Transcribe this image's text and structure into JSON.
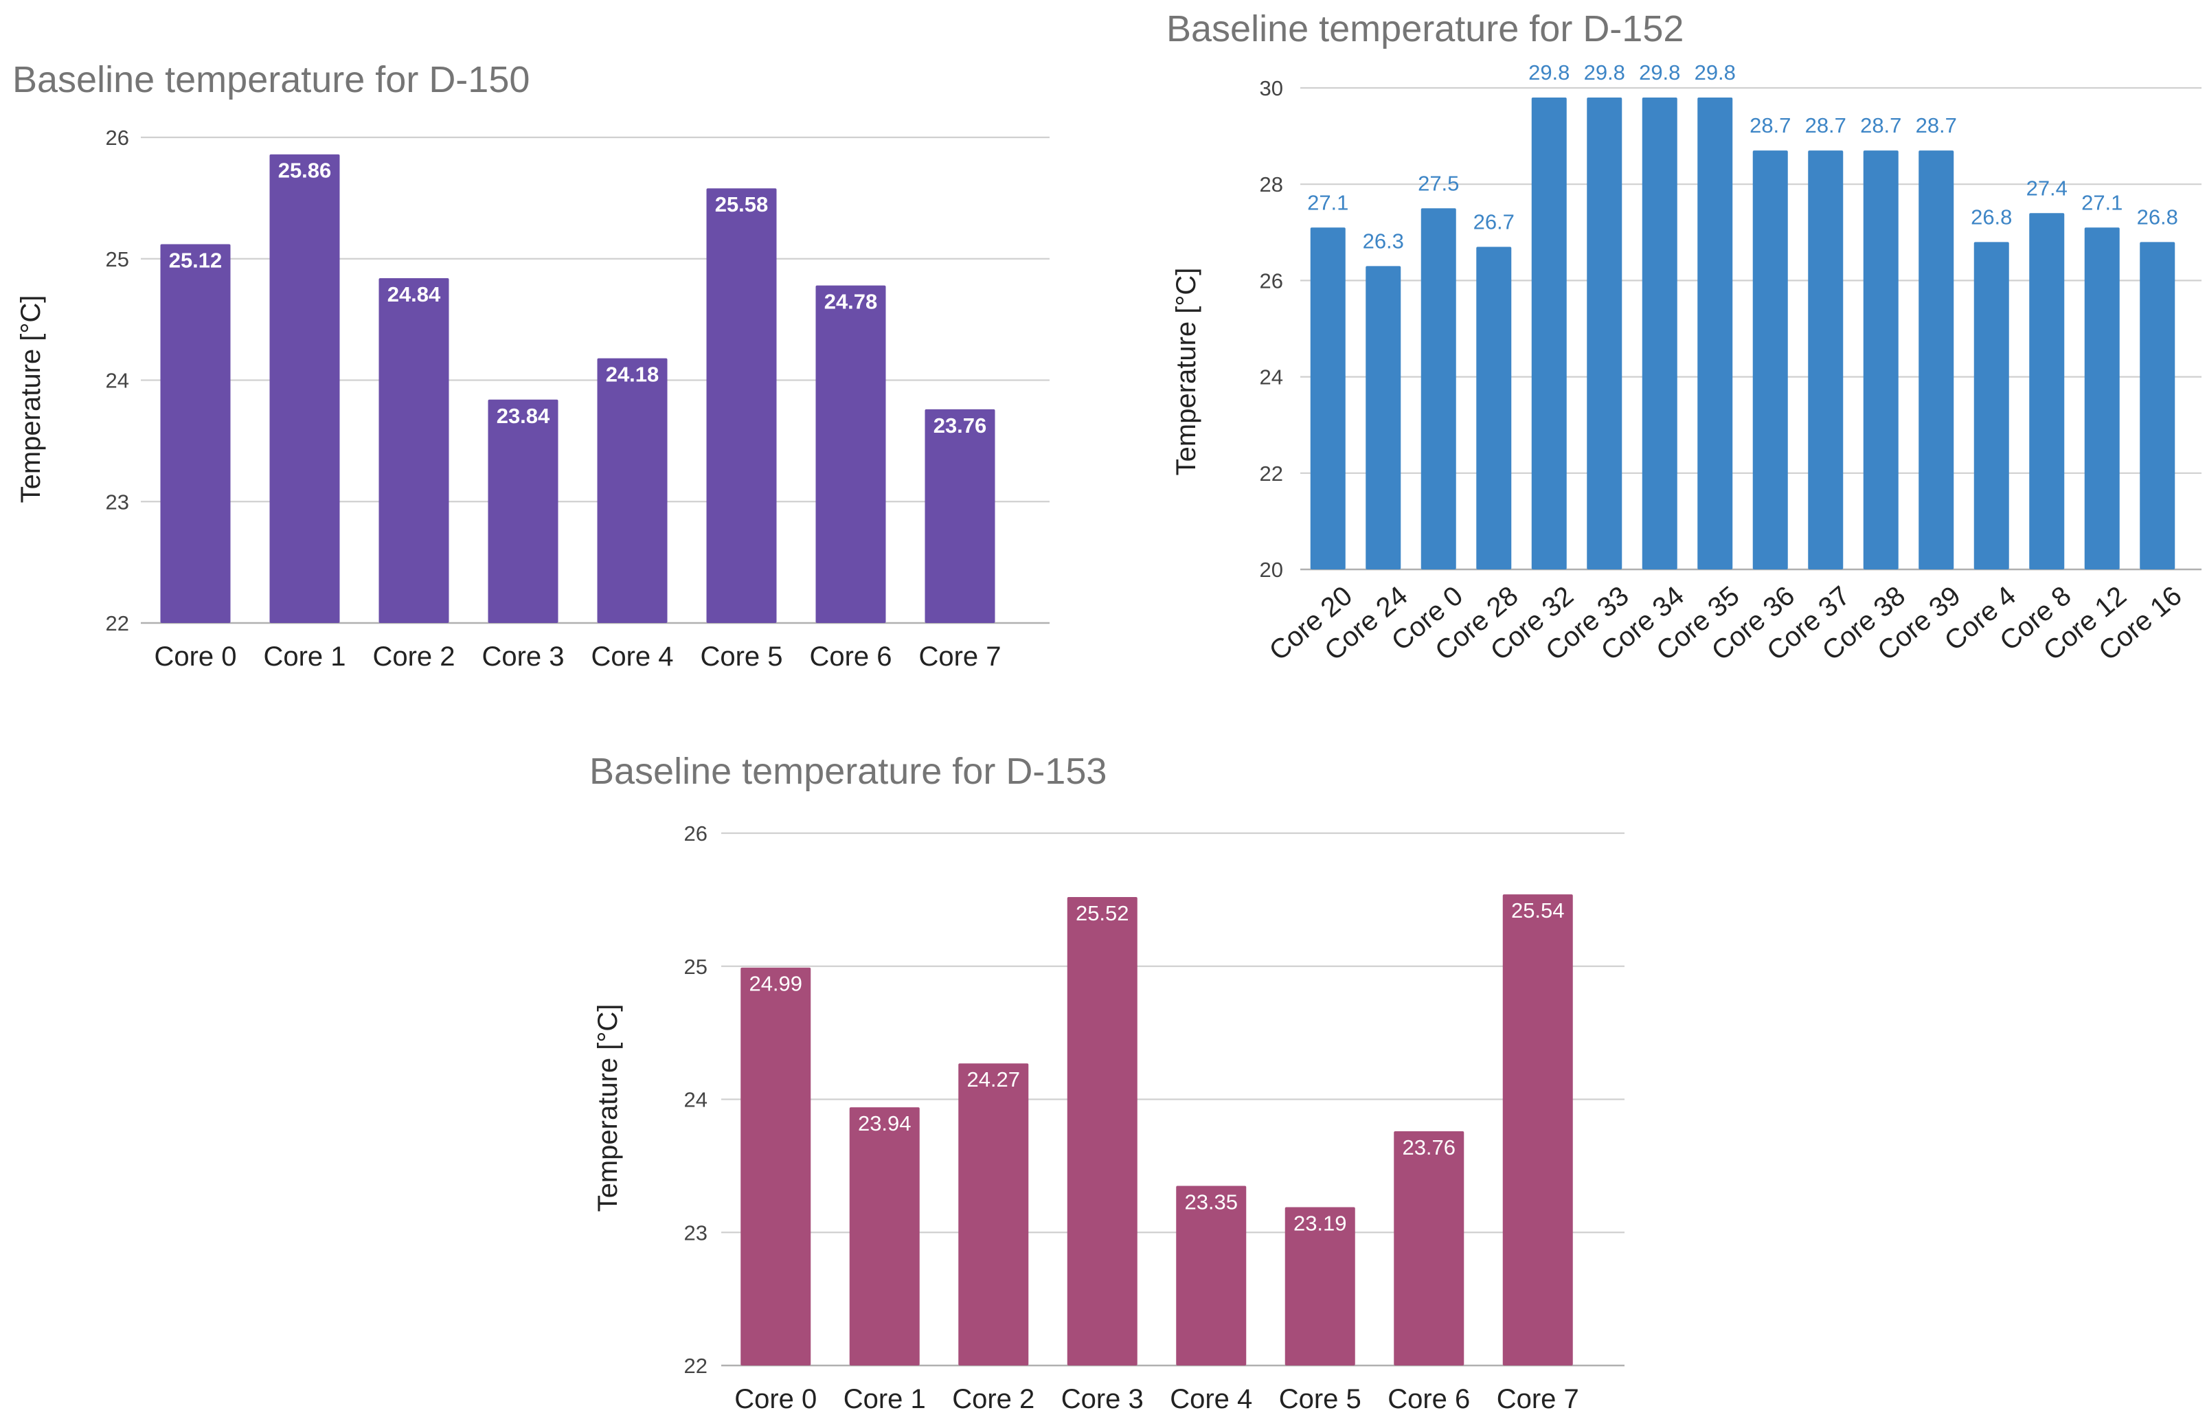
{
  "chart_data": [
    {
      "type": "bar",
      "title": "Baseline temperature for D-150",
      "xlabel": "",
      "ylabel": "Temperature [°C]",
      "ylim": [
        22,
        26
      ],
      "yticks": [
        "22",
        "23",
        "24",
        "25",
        "26"
      ],
      "grid": true,
      "color": "#6a4ea8",
      "label_color": "#ffffff",
      "label_position": "inside-top",
      "label_bold": true,
      "categories": [
        "Core 0",
        "Core 1",
        "Core 2",
        "Core 3",
        "Core 4",
        "Core 5",
        "Core 6",
        "Core 7"
      ],
      "values": [
        25.12,
        25.86,
        24.84,
        23.84,
        24.18,
        25.58,
        24.78,
        23.76
      ],
      "labels": [
        "25.12",
        "25.86",
        "24.84",
        "23.84",
        "24.18",
        "25.58",
        "24.78",
        "23.76"
      ]
    },
    {
      "type": "bar",
      "title": "Baseline temperature for D-152",
      "xlabel": "",
      "ylabel": "Temperature [°C]",
      "ylim": [
        20,
        30
      ],
      "yticks": [
        "20",
        "22",
        "24",
        "26",
        "28",
        "30"
      ],
      "grid": true,
      "color": "#3d85c6",
      "label_color": "#3d85c6",
      "label_position": "above",
      "label_bold": false,
      "categories": [
        "Core 20",
        "Core 24",
        "Core 0",
        "Core 28",
        "Core 32",
        "Core 33",
        "Core 34",
        "Core 35",
        "Core 36",
        "Core 37",
        "Core 38",
        "Core 39",
        "Core 4",
        "Core 8",
        "Core 12",
        "Core 16"
      ],
      "values": [
        27.1,
        26.3,
        27.5,
        26.7,
        29.8,
        29.8,
        29.8,
        29.8,
        28.7,
        28.7,
        28.7,
        28.7,
        26.8,
        27.4,
        27.1,
        26.8
      ],
      "labels": [
        "27.1",
        "26.3",
        "27.5",
        "26.7",
        "29.8",
        "29.8",
        "29.8",
        "29.8",
        "28.7",
        "28.7",
        "28.7",
        "28.7",
        "26.8",
        "27.4",
        "27.1",
        "26.8"
      ]
    },
    {
      "type": "bar",
      "title": "Baseline temperature for D-153",
      "xlabel": "",
      "ylabel": "Temperature [°C]",
      "ylim": [
        22,
        26
      ],
      "yticks": [
        "22",
        "23",
        "24",
        "25",
        "26"
      ],
      "grid": true,
      "color": "#a64d79",
      "label_color": "#ffffff",
      "label_position": "inside-top",
      "label_bold": false,
      "categories": [
        "Core 0",
        "Core 1",
        "Core 2",
        "Core 3",
        "Core 4",
        "Core 5",
        "Core 6",
        "Core 7"
      ],
      "values": [
        24.99,
        23.94,
        24.27,
        25.52,
        23.35,
        23.19,
        23.76,
        25.54
      ],
      "labels": [
        "24.99",
        "23.94",
        "24.27",
        "25.52",
        "23.35",
        "23.19",
        "23.76",
        "25.54"
      ]
    }
  ]
}
